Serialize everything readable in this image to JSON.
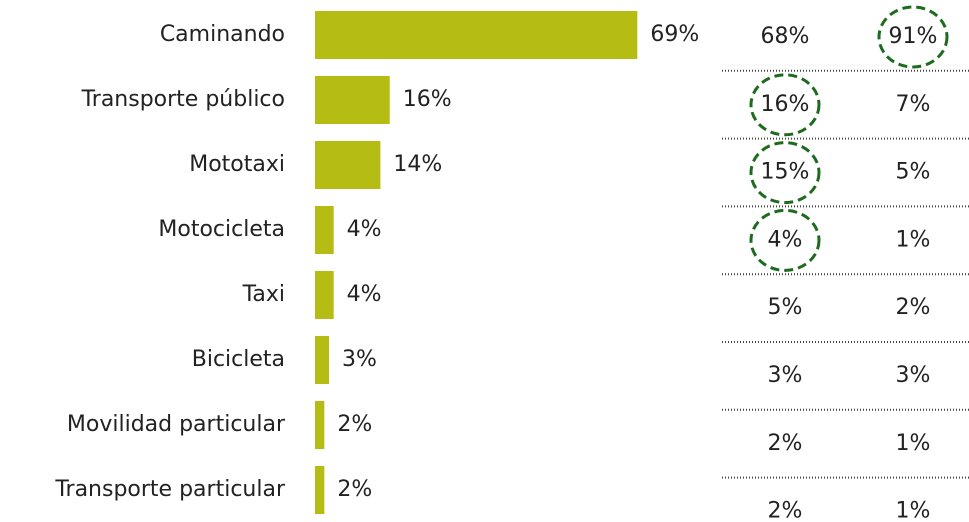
{
  "chart_data": {
    "type": "bar",
    "orientation": "horizontal",
    "categories": [
      "Caminando",
      "Transporte público",
      "Mototaxi",
      "Motocicleta",
      "Taxi",
      "Bicicleta",
      "Movilidad particular",
      "Transporte particular"
    ],
    "values": [
      69,
      16,
      14,
      4,
      4,
      3,
      2,
      2
    ],
    "value_labels": [
      "69%",
      "16%",
      "14%",
      "4%",
      "4%",
      "3%",
      "2%",
      "2%"
    ],
    "color": "#b5bd15",
    "xlim": [
      0,
      70
    ],
    "columns": [
      {
        "values": [
          68,
          16,
          15,
          4,
          5,
          3,
          2,
          2
        ],
        "value_labels": [
          "68%",
          "16%",
          "15%",
          "4%",
          "5%",
          "3%",
          "2%",
          "2%"
        ],
        "circled": [
          1,
          2,
          3
        ]
      },
      {
        "values": [
          91,
          7,
          5,
          1,
          2,
          3,
          1,
          1
        ],
        "value_labels": [
          "91%",
          "7%",
          "5%",
          "1%",
          "2%",
          "3%",
          "1%",
          "1%"
        ],
        "circled": [
          0
        ]
      }
    ],
    "circle_color": "#1e6b1e"
  }
}
